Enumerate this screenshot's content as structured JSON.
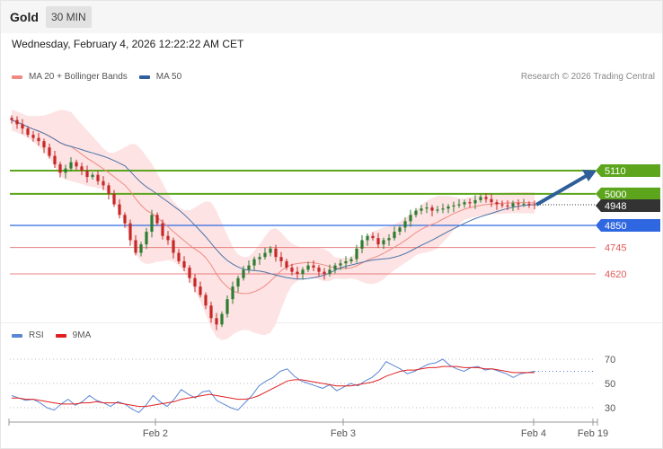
{
  "header": {
    "title": "Gold",
    "timeframe": "30 MIN",
    "datetime": "Wednesday, February 4, 2026 12:22:22 AM CET"
  },
  "legend_main": {
    "items": [
      {
        "label": "MA 20 + Bollinger Bands",
        "color": "#f08a85"
      },
      {
        "label": "MA 50",
        "color": "#2f5f9e"
      }
    ]
  },
  "credit": "Research © 2026 Trading Central",
  "legend_rsi": {
    "items": [
      {
        "label": "RSI",
        "color": "#5b86d6"
      },
      {
        "label": "9MA",
        "color": "#e02020"
      }
    ]
  },
  "colors": {
    "resistance": "#5ca51d",
    "support_main": "#2f67e0",
    "support_minor": "#e05a5a",
    "candle_up": "#2e7d32",
    "candle_down": "#c62828",
    "price_tag": "#333333",
    "arrow": "#2e5f9b",
    "bollinger_fill": "#fde3e3"
  },
  "chart_data": {
    "type": "candlestick",
    "instrument": "Gold",
    "last_price": 4948,
    "levels": [
      {
        "value": 5110,
        "label": "5110",
        "kind": "resistance"
      },
      {
        "value": 5000,
        "label": "5000",
        "kind": "resistance"
      },
      {
        "value": 4850,
        "label": "4850",
        "kind": "pivot"
      },
      {
        "value": 4745,
        "label": "4745",
        "kind": "support"
      },
      {
        "value": 4620,
        "label": "4620",
        "kind": "support"
      }
    ],
    "x_ticks": [
      "Feb 2",
      "Feb 3",
      "Feb 4",
      "Feb 19"
    ],
    "target_arrow": {
      "from": 4948,
      "to": 5110
    },
    "close_series": [
      5350,
      5330,
      5310,
      5280,
      5265,
      5250,
      5220,
      5180,
      5140,
      5100,
      5120,
      5150,
      5130,
      5110,
      5080,
      5090,
      5060,
      5040,
      5000,
      4950,
      4900,
      4860,
      4780,
      4720,
      4760,
      4820,
      4900,
      4860,
      4800,
      4780,
      4720,
      4680,
      4650,
      4600,
      4560,
      4520,
      4470,
      4410,
      4380,
      4430,
      4500,
      4560,
      4600,
      4640,
      4660,
      4690,
      4700,
      4720,
      4740,
      4700,
      4680,
      4650,
      4630,
      4620,
      4640,
      4660,
      4650,
      4630,
      4620,
      4640,
      4660,
      4670,
      4680,
      4690,
      4740,
      4780,
      4800,
      4790,
      4760,
      4780,
      4790,
      4820,
      4840,
      4870,
      4900,
      4920,
      4930,
      4935,
      4920,
      4925,
      4930,
      4940,
      4945,
      4950,
      4960,
      4955,
      4970,
      4985,
      4975,
      4960,
      4950,
      4945,
      4940,
      4955,
      4950,
      4952,
      4950,
      4948
    ],
    "rsi": {
      "levels": [
        70,
        50,
        30
      ],
      "rsi_values": [
        40,
        38,
        36,
        37,
        34,
        30,
        28,
        33,
        37,
        32,
        35,
        40,
        36,
        34,
        31,
        35,
        33,
        29,
        26,
        32,
        40,
        35,
        31,
        37,
        45,
        41,
        38,
        43,
        44,
        36,
        33,
        30,
        28,
        34,
        40,
        48,
        52,
        55,
        60,
        62,
        56,
        52,
        50,
        48,
        46,
        49,
        44,
        47,
        50,
        48,
        52,
        55,
        60,
        68,
        65,
        62,
        58,
        60,
        63,
        66,
        67,
        70,
        65,
        62,
        60,
        63,
        64,
        61,
        62,
        60,
        58,
        55,
        58,
        59,
        60
      ],
      "ma_values": [
        38,
        38,
        37,
        37,
        36,
        35,
        34,
        33,
        33,
        33,
        34,
        34,
        35,
        34,
        34,
        34,
        33,
        32,
        31,
        31,
        32,
        33,
        34,
        35,
        37,
        38,
        39,
        40,
        41,
        40,
        39,
        38,
        37,
        37,
        38,
        40,
        43,
        46,
        49,
        52,
        53,
        53,
        52,
        51,
        50,
        49,
        48,
        48,
        48,
        49,
        50,
        51,
        53,
        56,
        58,
        60,
        61,
        61,
        62,
        63,
        63,
        64,
        64,
        64,
        63,
        63,
        63,
        62,
        62,
        61,
        60,
        59,
        59,
        59,
        59
      ]
    }
  }
}
